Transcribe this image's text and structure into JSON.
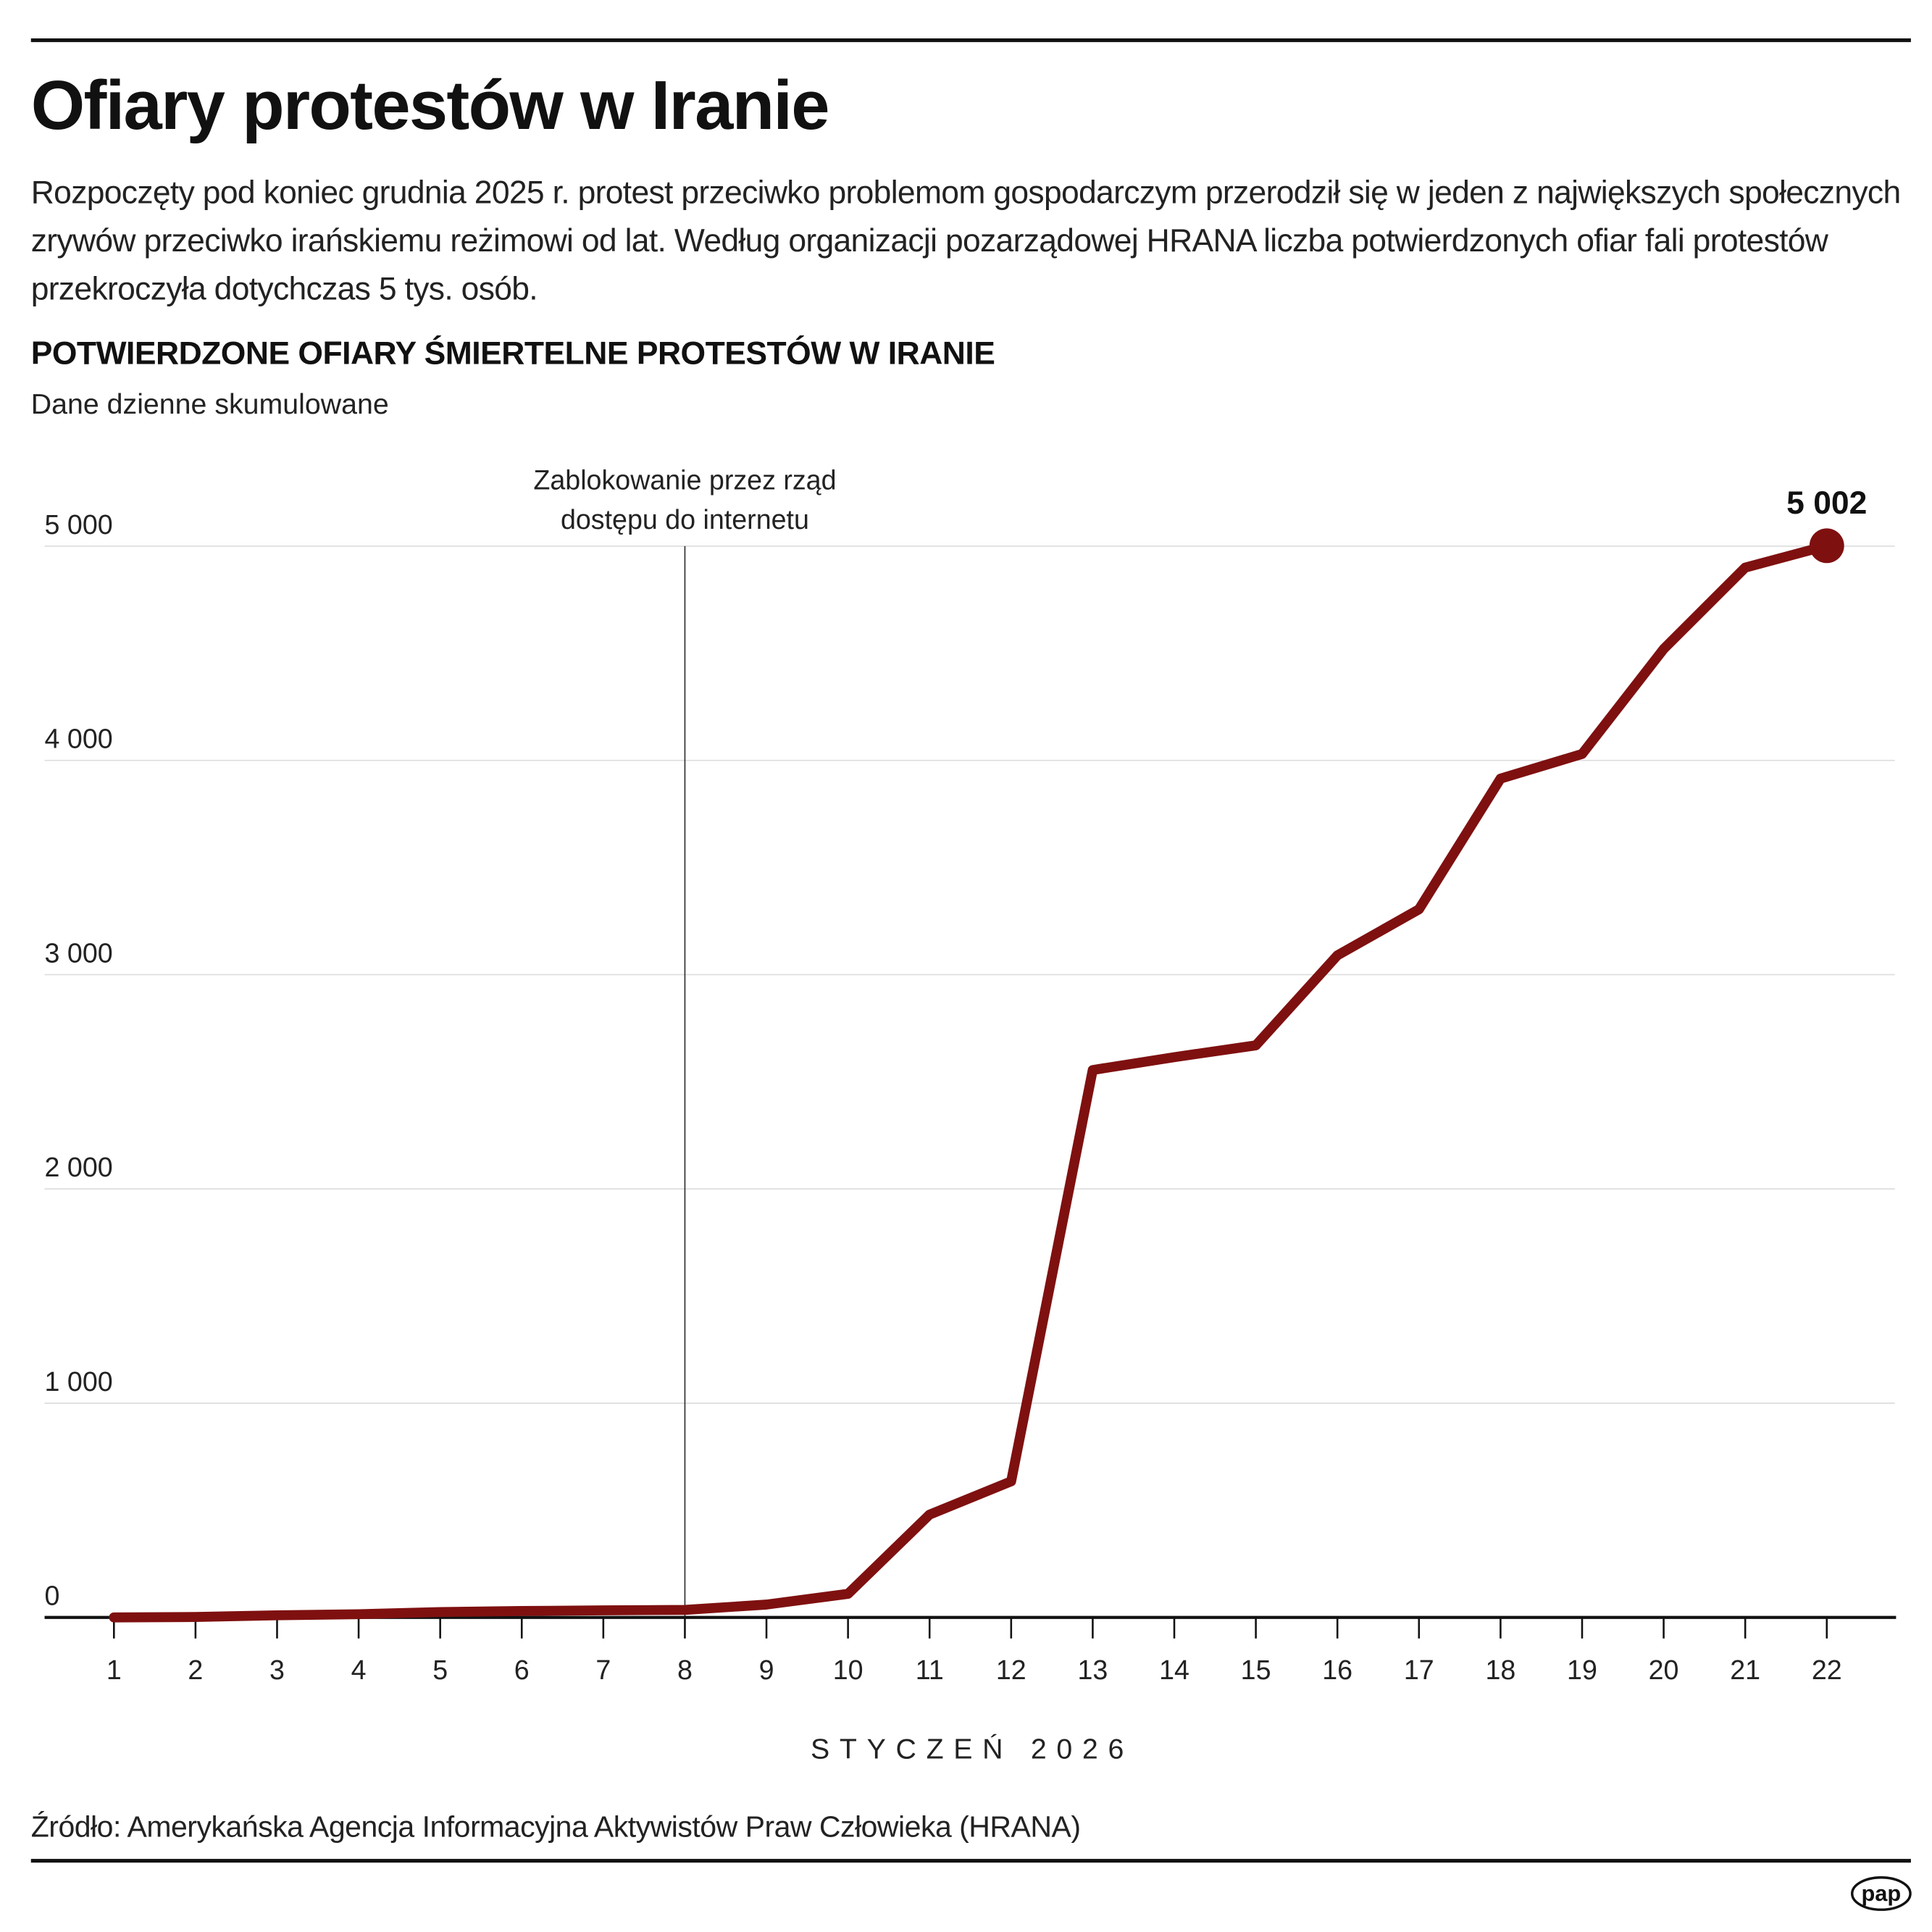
{
  "header": {
    "title": "Ofiary protestów w Iranie",
    "lead": "Rozpoczęty pod koniec grudnia 2025 r. protest przeciwko problemom gospodarczym przerodził się w jeden z największych społecznych zrywów przeciwko irańskiemu reżimowi od lat. Według organizacji pozarządowej HRANA liczba potwierdzonych ofiar fali protestów przekroczyła dotychczas 5 tys. osób."
  },
  "chart_data": {
    "type": "line",
    "title": "POTWIERDZONE OFIARY ŚMIERTELNE PROTESTÓW W IRANIE",
    "subtitle": "Dane dzienne skumulowane",
    "xlabel": "STYCZEŃ 2026",
    "ylabel": "",
    "x": [
      1,
      2,
      3,
      4,
      5,
      6,
      7,
      8,
      9,
      10,
      11,
      12,
      13,
      14,
      15,
      16,
      17,
      18,
      19,
      20,
      21,
      22
    ],
    "values": [
      0,
      2,
      10,
      15,
      25,
      30,
      33,
      35,
      60,
      110,
      480,
      635,
      2555,
      2615,
      2670,
      3090,
      3305,
      3915,
      4030,
      4520,
      4900,
      5002
    ],
    "ylim": [
      0,
      5000
    ],
    "yticks": [
      0,
      1000,
      2000,
      3000,
      4000,
      5000
    ],
    "ytick_labels": [
      "0",
      "1 000",
      "2 000",
      "3 000",
      "4 000",
      "5 000"
    ],
    "grid": true,
    "line_color": "#7f1010",
    "end_label": "5 002",
    "annotation": {
      "x": 8,
      "lines": [
        "Zablokowanie przez rząd",
        "dostępu do internetu"
      ]
    }
  },
  "footer": {
    "source": "Źródło: Amerykańska Agencja Informacyjna Aktywistów Praw Człowieka (HRANA)",
    "logo": "pap"
  }
}
